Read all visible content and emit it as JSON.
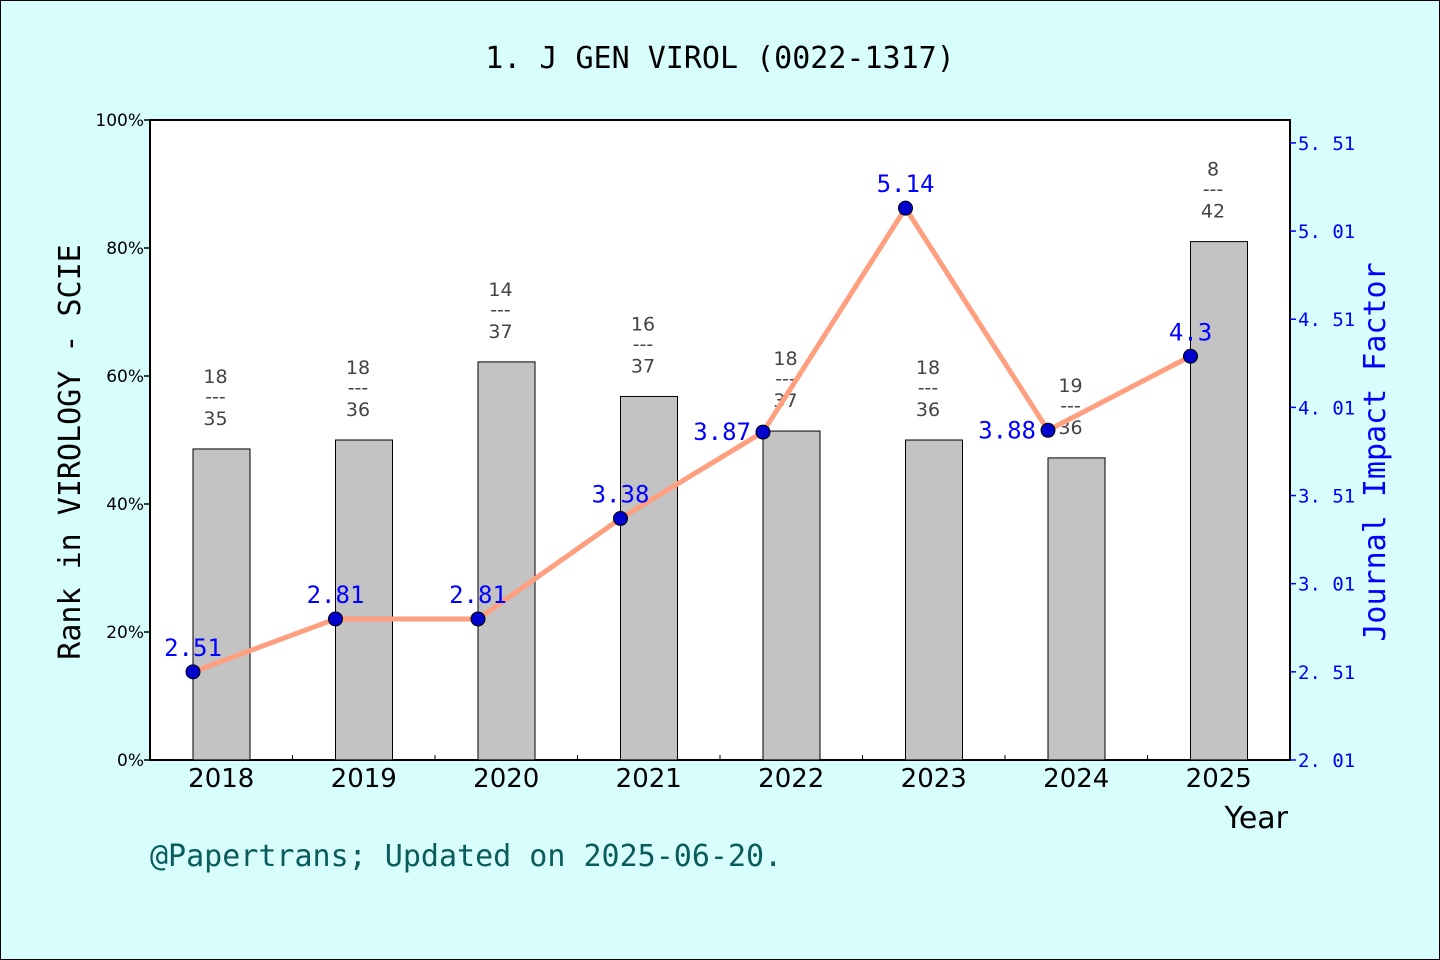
{
  "chart_data": {
    "type": "bar+line",
    "title": "1. J GEN VIROL (0022-1317)",
    "xlabel": "Year",
    "ylabel_left": "Rank in VIROLOGY - SCIE",
    "ylabel_right": "Journal Impact Factor",
    "categories": [
      "2018",
      "2019",
      "2020",
      "2021",
      "2022",
      "2023",
      "2024",
      "2025"
    ],
    "left_axis": {
      "range": [
        0,
        100
      ],
      "ticks": [
        "0%",
        "20%",
        "40%",
        "60%",
        "80%",
        "100%"
      ]
    },
    "right_axis": {
      "range": [
        2.01,
        5.64
      ],
      "ticks": [
        "2.01",
        "2.51",
        "3.01",
        "3.51",
        "4.01",
        "4.51",
        "5.01",
        "5.51"
      ]
    },
    "bars": {
      "values_percent": [
        48.6,
        50.0,
        62.2,
        56.8,
        51.4,
        50.0,
        47.2,
        81.0
      ],
      "rank": [
        "18",
        "18",
        "14",
        "16",
        "18",
        "18",
        "19",
        "8"
      ],
      "total": [
        "35",
        "36",
        "37",
        "37",
        "37",
        "36",
        "36",
        "42"
      ],
      "color": "#b8b8b8"
    },
    "line": {
      "values": [
        2.51,
        2.81,
        2.81,
        3.38,
        3.87,
        5.14,
        3.88,
        4.3
      ],
      "labels": [
        "2.51",
        "2.81",
        "2.81",
        "3.38",
        "3.87",
        "5.14",
        "3.88",
        "4.3"
      ],
      "line_color": "#ff9f7f",
      "marker_color": "#0000cc"
    },
    "grid": false
  },
  "footer": "@Papertrans; Updated on 2025-06-20."
}
